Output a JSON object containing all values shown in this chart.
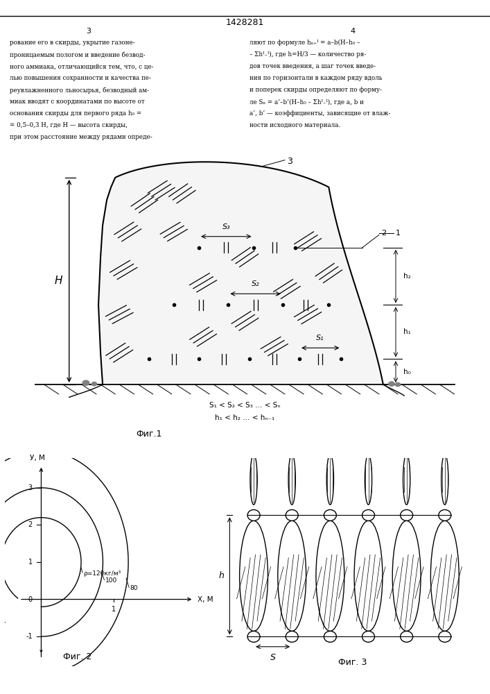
{
  "bg_color": "#ffffff",
  "title": "1428281",
  "page_nums": [
    "3",
    "4"
  ],
  "fig1_caption": "Фиг.1",
  "fig2_caption": "Фиг. 2",
  "fig3_caption": "Фиг. 3",
  "left_text_lines": [
    "рование его в скирды, укрытие газоне-",
    "проницаемым пологом и введение безвод-",
    "ного аммиака, отличающийся тем, что, с це-",
    "лью повышения сохранности и качества пе-",
    "реувлажненного льносырья, безводный ам-",
    "миак вводят с координатами по высоте от",
    "основания скирды для первого ряда h₀ =",
    "= 0,5–0,3 H, где H — высота скирды,",
    "при этом расстояние между рядами опреде-"
  ],
  "right_text_lines": [
    "ляют по формуле hₙ₊ᴵ = a–b(H–h₀ –",
    "– Σhᴵ₋ᴵ), где h=H/3 — количество ря-",
    "дов точек введения, а шаг точек введе-",
    "ния по горизонтали в каждом ряду вдоль",
    "и поперек скирды определяют по форму-",
    "ле Sₙ = a’–b’(H–h₀ – Σhᴵ₋ᴵ), где а, b и",
    "a’, b’ — коэффициенты, зависящие от влаж-",
    "ности исходного материала."
  ]
}
